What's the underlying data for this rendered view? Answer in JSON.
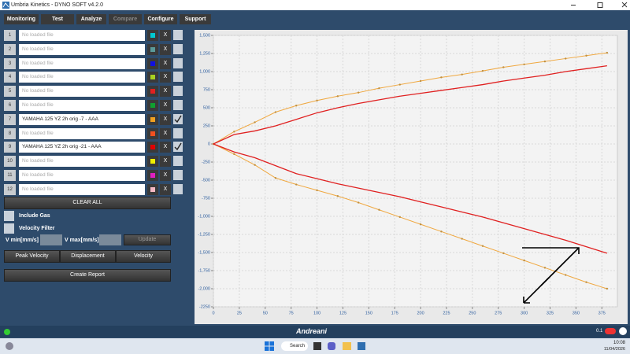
{
  "window": {
    "title": "Umbria Kinetics - DYNO SOFT v4.2.0"
  },
  "menu": [
    {
      "label": "Monitoring",
      "disabled": false
    },
    {
      "label": "Test",
      "disabled": false
    },
    {
      "label": "Analyze",
      "disabled": false
    },
    {
      "label": "Compare",
      "disabled": true
    },
    {
      "label": "Configure",
      "disabled": false
    },
    {
      "label": "Support",
      "disabled": false
    }
  ],
  "files": [
    {
      "number": "1",
      "label": "No loaded file",
      "loaded": false,
      "color": "#00c8d0",
      "checked": false
    },
    {
      "number": "2",
      "label": "No loaded file",
      "loaded": false,
      "color": "#5a9a9a",
      "checked": false
    },
    {
      "number": "3",
      "label": "No loaded file",
      "loaded": false,
      "color": "#1010e0",
      "checked": false
    },
    {
      "number": "4",
      "label": "No loaded file",
      "loaded": false,
      "color": "#a8d020",
      "checked": false
    },
    {
      "number": "5",
      "label": "No loaded file",
      "loaded": false,
      "color": "#e02020",
      "checked": false
    },
    {
      "number": "6",
      "label": "No loaded file",
      "loaded": false,
      "color": "#10a030",
      "checked": false
    },
    {
      "number": "7",
      "label": "YAMAHA 125 YZ 2h orig -7 - AAA",
      "loaded": true,
      "color": "#f0a020",
      "checked": true
    },
    {
      "number": "8",
      "label": "No loaded file",
      "loaded": false,
      "color": "#f05020",
      "checked": false
    },
    {
      "number": "9",
      "label": "YAMAHA 125 YZ 2h orig -21 - AAA",
      "loaded": true,
      "color": "#e00000",
      "checked": true
    },
    {
      "number": "10",
      "label": "No loaded file",
      "loaded": false,
      "color": "#f0f000",
      "checked": false
    },
    {
      "number": "11",
      "label": "No loaded file",
      "loaded": false,
      "color": "#e020c0",
      "checked": false
    },
    {
      "number": "12",
      "label": "No loaded file",
      "loaded": false,
      "color": "#f4b8c4",
      "checked": false
    }
  ],
  "remove_label": "X",
  "controls": {
    "clear_all": "CLEAR ALL",
    "include_gas": "Include Gas",
    "velocity_filter": "Velocity Filter",
    "vmin_label": "V min[mm/s]",
    "vmax_label": "V max[mm/s]",
    "update": "Update",
    "peak_velocity": "Peak Velocity",
    "displacement": "Displacement",
    "velocity": "Velocity",
    "create_report": "Create Report"
  },
  "chart_data": {
    "type": "line",
    "grid": true,
    "x": [
      0,
      20,
      40,
      60,
      80,
      100,
      120,
      140,
      160,
      180,
      200,
      220,
      240,
      260,
      280,
      300,
      320,
      340,
      360,
      380
    ],
    "xlim": [
      0,
      390
    ],
    "xticks": [
      0,
      25,
      50,
      75,
      100,
      125,
      150,
      175,
      200,
      225,
      250,
      275,
      300,
      325,
      350,
      375
    ],
    "ylim": [
      -2250,
      1500
    ],
    "yticks": [
      -2250,
      {
        "value": -2000,
        "label": "-2,000"
      },
      {
        "value": -1750,
        "label": "-1,750"
      },
      {
        "value": -1500,
        "label": "-1,500"
      },
      {
        "value": -1250,
        "label": "-1,250"
      },
      {
        "value": -1000,
        "label": "-1,000"
      },
      -750,
      -500,
      -250,
      0,
      250,
      500,
      750,
      {
        "value": 1000,
        "label": "1,000"
      },
      {
        "value": 1250,
        "label": "1,250"
      },
      {
        "value": 1500,
        "label": "1,500"
      }
    ],
    "series": [
      {
        "color": "#f0a840",
        "markers": true,
        "values": [
          0,
          170,
          300,
          440,
          530,
          600,
          660,
          710,
          770,
          820,
          870,
          920,
          960,
          1010,
          1060,
          1100,
          1140,
          1180,
          1220,
          1260
        ]
      },
      {
        "color": "#f0a840",
        "markers": true,
        "values": [
          0,
          -140,
          -290,
          -470,
          -560,
          -640,
          -720,
          -810,
          -910,
          -1010,
          -1110,
          -1210,
          -1310,
          -1410,
          -1510,
          -1610,
          -1710,
          -1810,
          -1910,
          -2000
        ]
      },
      {
        "color": "#e02020",
        "markers": false,
        "values": [
          0,
          130,
          180,
          250,
          340,
          430,
          500,
          560,
          610,
          660,
          700,
          740,
          780,
          820,
          870,
          910,
          950,
          1000,
          1040,
          1080
        ]
      },
      {
        "color": "#e02020",
        "markers": false,
        "values": [
          0,
          -110,
          -190,
          -300,
          -410,
          -480,
          -550,
          -610,
          -670,
          -730,
          -800,
          -870,
          -940,
          -1010,
          -1090,
          -1170,
          -1250,
          -1330,
          -1420,
          -1510
        ]
      }
    ]
  },
  "status": {
    "logo": "Andreani",
    "version": "0.1"
  },
  "taskbar": {
    "search": "Search",
    "time": "10:08",
    "date": "11/04/2026"
  }
}
